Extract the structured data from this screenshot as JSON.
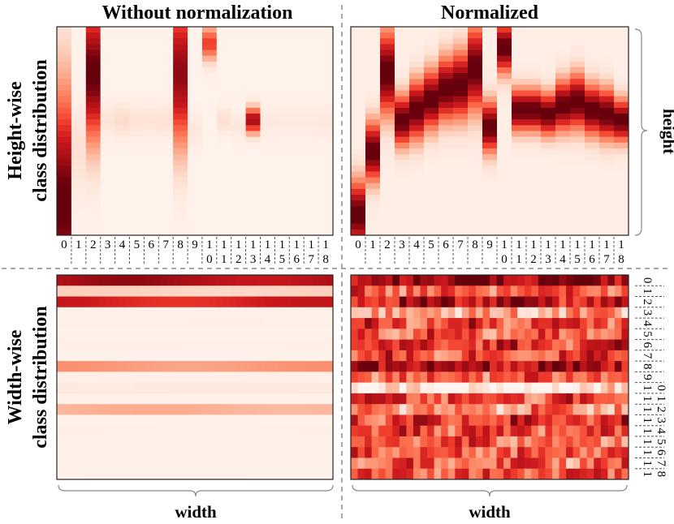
{
  "chart_data": {
    "type": "heatmap",
    "colormap": "Reds",
    "column_titles": [
      "Without normalization",
      "Normalized"
    ],
    "row_titles": [
      {
        "line1": "Height-wise",
        "line2": "class distribution"
      },
      {
        "line1": "Width-wise",
        "line2": "class distribution"
      }
    ],
    "axis_labels": {
      "height": "height",
      "width": "width"
    },
    "class_labels": [
      {
        "top": "0",
        "bottom": ""
      },
      {
        "top": "1",
        "bottom": ""
      },
      {
        "top": "2",
        "bottom": ""
      },
      {
        "top": "3",
        "bottom": ""
      },
      {
        "top": "4",
        "bottom": ""
      },
      {
        "top": "5",
        "bottom": ""
      },
      {
        "top": "6",
        "bottom": ""
      },
      {
        "top": "7",
        "bottom": ""
      },
      {
        "top": "8",
        "bottom": ""
      },
      {
        "top": "9",
        "bottom": ""
      },
      {
        "top": "1",
        "bottom": "0"
      },
      {
        "top": "1",
        "bottom": "1"
      },
      {
        "top": "1",
        "bottom": "2"
      },
      {
        "top": "1",
        "bottom": "3"
      },
      {
        "top": "1",
        "bottom": "4"
      },
      {
        "top": "1",
        "bottom": "5"
      },
      {
        "top": "1",
        "bottom": "6"
      },
      {
        "top": "1",
        "bottom": "7"
      },
      {
        "top": "1",
        "bottom": "8"
      }
    ],
    "panels": [
      {
        "id": "height-raw",
        "title": "Height-wise class distribution, without normalization",
        "orientation": "class-columns",
        "classes": [
          {
            "peak": 0.85,
            "width": 0.55,
            "amp": 1.0,
            "base": 0.02
          },
          {
            "peak": 0.6,
            "width": 0.2,
            "amp": 0.1,
            "base": 0.02
          },
          {
            "peak": 0.22,
            "width": 0.33,
            "amp": 1.0,
            "base": 0.02
          },
          {
            "peak": 0.45,
            "width": 0.08,
            "amp": 0.08,
            "base": 0.02
          },
          {
            "peak": 0.45,
            "width": 0.08,
            "amp": 0.12,
            "base": 0.02
          },
          {
            "peak": 0.45,
            "width": 0.08,
            "amp": 0.09,
            "base": 0.02
          },
          {
            "peak": 0.45,
            "width": 0.08,
            "amp": 0.08,
            "base": 0.02
          },
          {
            "peak": 0.45,
            "width": 0.08,
            "amp": 0.09,
            "base": 0.02
          },
          {
            "peak": 0.22,
            "width": 0.35,
            "amp": 0.9,
            "base": 0.02
          },
          {
            "peak": 0.5,
            "width": 0.08,
            "amp": 0.06,
            "base": 0.02
          },
          {
            "peak": 0.08,
            "width": 0.08,
            "amp": 0.6,
            "base": 0.02
          },
          {
            "peak": 0.45,
            "width": 0.06,
            "amp": 0.1,
            "base": 0.02
          },
          {
            "peak": 0.48,
            "width": 0.06,
            "amp": 0.06,
            "base": 0.02
          },
          {
            "peak": 0.45,
            "width": 0.06,
            "amp": 0.85,
            "base": 0.02
          },
          {
            "peak": 0.45,
            "width": 0.08,
            "amp": 0.05,
            "base": 0.02
          },
          {
            "peak": 0.45,
            "width": 0.08,
            "amp": 0.05,
            "base": 0.02
          },
          {
            "peak": 0.45,
            "width": 0.08,
            "amp": 0.05,
            "base": 0.02
          },
          {
            "peak": 0.45,
            "width": 0.08,
            "amp": 0.05,
            "base": 0.02
          },
          {
            "peak": 0.45,
            "width": 0.08,
            "amp": 0.06,
            "base": 0.02
          }
        ]
      },
      {
        "id": "height-norm",
        "title": "Height-wise class distribution, normalized",
        "orientation": "class-columns",
        "classes": [
          {
            "peak": 0.9,
            "width": 0.16,
            "amp": 1.0,
            "base": 0.04
          },
          {
            "peak": 0.6,
            "width": 0.14,
            "amp": 1.0,
            "base": 0.04
          },
          {
            "peak": 0.22,
            "width": 0.2,
            "amp": 1.0,
            "base": 0.04
          },
          {
            "peak": 0.45,
            "width": 0.12,
            "amp": 1.0,
            "base": 0.04
          },
          {
            "peak": 0.4,
            "width": 0.14,
            "amp": 1.0,
            "base": 0.04
          },
          {
            "peak": 0.35,
            "width": 0.14,
            "amp": 1.0,
            "base": 0.04
          },
          {
            "peak": 0.3,
            "width": 0.15,
            "amp": 1.0,
            "base": 0.04
          },
          {
            "peak": 0.28,
            "width": 0.16,
            "amp": 1.0,
            "base": 0.04
          },
          {
            "peak": 0.2,
            "width": 0.2,
            "amp": 1.0,
            "base": 0.04
          },
          {
            "peak": 0.48,
            "width": 0.12,
            "amp": 1.0,
            "base": 0.04
          },
          {
            "peak": 0.1,
            "width": 0.12,
            "amp": 1.0,
            "base": 0.04
          },
          {
            "peak": 0.4,
            "width": 0.1,
            "amp": 1.0,
            "base": 0.04
          },
          {
            "peak": 0.4,
            "width": 0.1,
            "amp": 1.0,
            "base": 0.04
          },
          {
            "peak": 0.42,
            "width": 0.1,
            "amp": 1.0,
            "base": 0.04
          },
          {
            "peak": 0.38,
            "width": 0.12,
            "amp": 1.0,
            "base": 0.04
          },
          {
            "peak": 0.36,
            "width": 0.13,
            "amp": 1.0,
            "base": 0.04
          },
          {
            "peak": 0.4,
            "width": 0.12,
            "amp": 1.0,
            "base": 0.04
          },
          {
            "peak": 0.42,
            "width": 0.12,
            "amp": 1.0,
            "base": 0.04
          },
          {
            "peak": 0.45,
            "width": 0.1,
            "amp": 1.0,
            "base": 0.04
          }
        ]
      },
      {
        "id": "width-raw",
        "title": "Width-wise class distribution, without normalization",
        "orientation": "class-rows",
        "row_values": [
          0.92,
          0.18,
          0.78,
          0.03,
          0.04,
          0.03,
          0.04,
          0.03,
          0.38,
          0.04,
          0.08,
          0.03,
          0.3,
          0.03,
          0.04,
          0.03,
          0.03,
          0.03,
          0.03
        ]
      },
      {
        "id": "width-norm",
        "title": "Width-wise class distribution, normalized",
        "orientation": "class-rows",
        "row_values": [
          0.9,
          0.55,
          0.8,
          0.3,
          0.6,
          0.55,
          0.65,
          0.6,
          0.85,
          0.55,
          0.05,
          0.6,
          0.4,
          0.65,
          0.6,
          0.5,
          0.55,
          0.5,
          0.55
        ]
      }
    ]
  }
}
